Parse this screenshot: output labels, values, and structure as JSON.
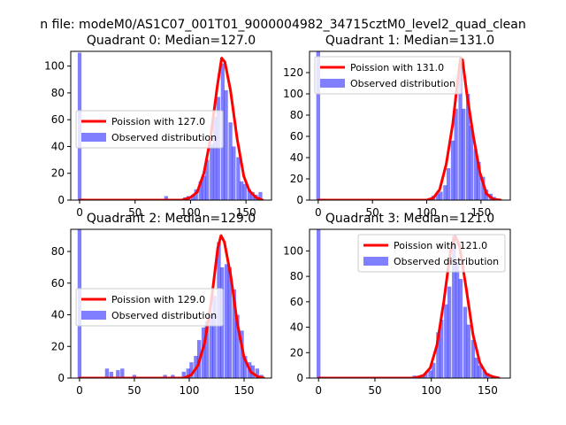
{
  "suptitle": "n file: modeM0/AS1C07_001T01_9000004982_34715cztM0_level2_quad_clean",
  "colors": {
    "hist": "#0000ff",
    "line": "#ff0000"
  },
  "chart_data": [
    {
      "type": "bar",
      "title": "Quadrant 0: Median=127.0",
      "legend": [
        "Poission with 127.0",
        "Observed distribution"
      ],
      "legend_loc": "center-left",
      "xlim": [
        -8,
        173
      ],
      "ylim": [
        0,
        111
      ],
      "xticks": [
        0,
        50,
        100,
        150
      ],
      "yticks": [
        0,
        20,
        40,
        60,
        80,
        100
      ],
      "bin_width": 3.4,
      "hist": [
        [
          0,
          110
        ],
        [
          78,
          3
        ],
        [
          95,
          2
        ],
        [
          98,
          3
        ],
        [
          102,
          4
        ],
        [
          105,
          8
        ],
        [
          109,
          14
        ],
        [
          112,
          18
        ],
        [
          115,
          30
        ],
        [
          119,
          42
        ],
        [
          122,
          62
        ],
        [
          125,
          77
        ],
        [
          129,
          102
        ],
        [
          132,
          82
        ],
        [
          136,
          58
        ],
        [
          139,
          40
        ],
        [
          143,
          32
        ],
        [
          146,
          14
        ],
        [
          149,
          12
        ],
        [
          153,
          8
        ],
        [
          156,
          6
        ],
        [
          159,
          4
        ],
        [
          163,
          6
        ]
      ],
      "poisson": [
        [
          0,
          0
        ],
        [
          92,
          0
        ],
        [
          100,
          2
        ],
        [
          106,
          6
        ],
        [
          112,
          20
        ],
        [
          118,
          46
        ],
        [
          124,
          84
        ],
        [
          128,
          106
        ],
        [
          131,
          103
        ],
        [
          136,
          82
        ],
        [
          142,
          46
        ],
        [
          148,
          18
        ],
        [
          153,
          7
        ],
        [
          159,
          2
        ],
        [
          165,
          0
        ]
      ]
    },
    {
      "type": "bar",
      "title": "Quadrant 1: Median=131.0",
      "legend": [
        "Poission with 131.0",
        "Observed distribution"
      ],
      "legend_loc": "top-left",
      "xlim": [
        -8,
        177
      ],
      "ylim": [
        0,
        140
      ],
      "xticks": [
        0,
        50,
        100,
        150
      ],
      "yticks": [
        0,
        20,
        40,
        60,
        80,
        100,
        120
      ],
      "bin_width": 3.5,
      "hist": [
        [
          0,
          140
        ],
        [
          103,
          2
        ],
        [
          106,
          4
        ],
        [
          110,
          6
        ],
        [
          113,
          8
        ],
        [
          117,
          14
        ],
        [
          120,
          30
        ],
        [
          124,
          56
        ],
        [
          127,
          86
        ],
        [
          131,
          126
        ],
        [
          134,
          86
        ],
        [
          138,
          100
        ],
        [
          141,
          70
        ],
        [
          145,
          48
        ],
        [
          148,
          36
        ],
        [
          152,
          22
        ],
        [
          155,
          10
        ],
        [
          159,
          6
        ],
        [
          162,
          3
        ]
      ],
      "poisson": [
        [
          0,
          0
        ],
        [
          100,
          0
        ],
        [
          106,
          2
        ],
        [
          112,
          10
        ],
        [
          118,
          34
        ],
        [
          124,
          72
        ],
        [
          128,
          108
        ],
        [
          131,
          133
        ],
        [
          133,
          132
        ],
        [
          137,
          100
        ],
        [
          143,
          60
        ],
        [
          149,
          26
        ],
        [
          155,
          6
        ],
        [
          161,
          1
        ],
        [
          168,
          0
        ]
      ]
    },
    {
      "type": "bar",
      "title": "Quadrant 2: Median=129.0",
      "legend": [
        "Poission with 129.0",
        "Observed distribution"
      ],
      "legend_loc": "center-left",
      "xlim": [
        -8,
        175
      ],
      "ylim": [
        0,
        94
      ],
      "xticks": [
        0,
        50,
        100,
        150
      ],
      "yticks": [
        0,
        20,
        40,
        60,
        80
      ],
      "bin_width": 3.5,
      "hist": [
        [
          0,
          94
        ],
        [
          25,
          6
        ],
        [
          29,
          4
        ],
        [
          35,
          5
        ],
        [
          39,
          6
        ],
        [
          50,
          2
        ],
        [
          78,
          2
        ],
        [
          85,
          2
        ],
        [
          95,
          4
        ],
        [
          99,
          6
        ],
        [
          102,
          10
        ],
        [
          106,
          14
        ],
        [
          109,
          24
        ],
        [
          113,
          32
        ],
        [
          116,
          36
        ],
        [
          120,
          40
        ],
        [
          123,
          52
        ],
        [
          127,
          86
        ],
        [
          130,
          70
        ],
        [
          134,
          72
        ],
        [
          137,
          70
        ],
        [
          141,
          56
        ],
        [
          144,
          40
        ],
        [
          148,
          30
        ],
        [
          151,
          14
        ],
        [
          155,
          10
        ],
        [
          158,
          8
        ],
        [
          162,
          6
        ],
        [
          166,
          2
        ]
      ],
      "poisson": [
        [
          0,
          0
        ],
        [
          95,
          0
        ],
        [
          102,
          2
        ],
        [
          108,
          8
        ],
        [
          114,
          22
        ],
        [
          120,
          48
        ],
        [
          126,
          82
        ],
        [
          129,
          90
        ],
        [
          132,
          86
        ],
        [
          138,
          64
        ],
        [
          144,
          34
        ],
        [
          150,
          13
        ],
        [
          156,
          4
        ],
        [
          162,
          1
        ],
        [
          168,
          0
        ]
      ]
    },
    {
      "type": "bar",
      "title": "Quadrant 3: Median=121.0",
      "legend": [
        "Poission with 121.0",
        "Observed distribution"
      ],
      "legend_loc": "top-right",
      "xlim": [
        -8,
        170
      ],
      "ylim": [
        0,
        117
      ],
      "xticks": [
        0,
        50,
        100,
        150
      ],
      "yticks": [
        0,
        20,
        40,
        60,
        80,
        100
      ],
      "bin_width": 3.4,
      "hist": [
        [
          0,
          117
        ],
        [
          85,
          2
        ],
        [
          92,
          2
        ],
        [
          95,
          4
        ],
        [
          99,
          6
        ],
        [
          102,
          12
        ],
        [
          106,
          36
        ],
        [
          109,
          46
        ],
        [
          113,
          58
        ],
        [
          116,
          72
        ],
        [
          120,
          112
        ],
        [
          123,
          90
        ],
        [
          126,
          78
        ],
        [
          130,
          56
        ],
        [
          133,
          42
        ],
        [
          137,
          30
        ],
        [
          140,
          16
        ],
        [
          143,
          10
        ],
        [
          147,
          6
        ],
        [
          150,
          4
        ],
        [
          154,
          2
        ]
      ],
      "poisson": [
        [
          0,
          0
        ],
        [
          85,
          0
        ],
        [
          93,
          2
        ],
        [
          99,
          8
        ],
        [
          105,
          26
        ],
        [
          111,
          60
        ],
        [
          117,
          100
        ],
        [
          121,
          112
        ],
        [
          125,
          104
        ],
        [
          131,
          70
        ],
        [
          137,
          34
        ],
        [
          143,
          12
        ],
        [
          149,
          3
        ],
        [
          155,
          1
        ],
        [
          160,
          0
        ]
      ]
    }
  ]
}
